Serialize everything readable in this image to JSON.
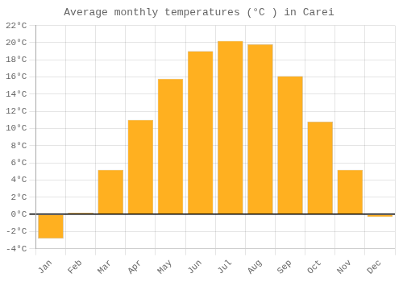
{
  "chart_data": {
    "type": "bar",
    "title": "Average monthly temperatures (°C ) in Carei",
    "categories": [
      "Jan",
      "Feb",
      "Mar",
      "Apr",
      "May",
      "Jun",
      "Jul",
      "Aug",
      "Sep",
      "Oct",
      "Nov",
      "Dec"
    ],
    "values": [
      -2.8,
      0.2,
      5.2,
      11.0,
      15.8,
      19.0,
      20.2,
      19.8,
      16.1,
      10.8,
      5.2,
      -0.3
    ],
    "color": "#FFB020",
    "ylim": [
      -4,
      22
    ],
    "yticks": [
      {
        "value": -4,
        "label": "-4°C"
      },
      {
        "value": -2,
        "label": "-2°C"
      },
      {
        "value": 0,
        "label": "0°C"
      },
      {
        "value": 2,
        "label": "2°C"
      },
      {
        "value": 4,
        "label": "4°C"
      },
      {
        "value": 6,
        "label": "6°C"
      },
      {
        "value": 8,
        "label": "8°C"
      },
      {
        "value": 10,
        "label": "10°C"
      },
      {
        "value": 12,
        "label": "12°C"
      },
      {
        "value": 14,
        "label": "14°C"
      },
      {
        "value": 16,
        "label": "16°C"
      },
      {
        "value": 18,
        "label": "18°C"
      },
      {
        "value": 20,
        "label": "20°C"
      },
      {
        "value": 22,
        "label": "22°C"
      }
    ],
    "grid": true
  }
}
